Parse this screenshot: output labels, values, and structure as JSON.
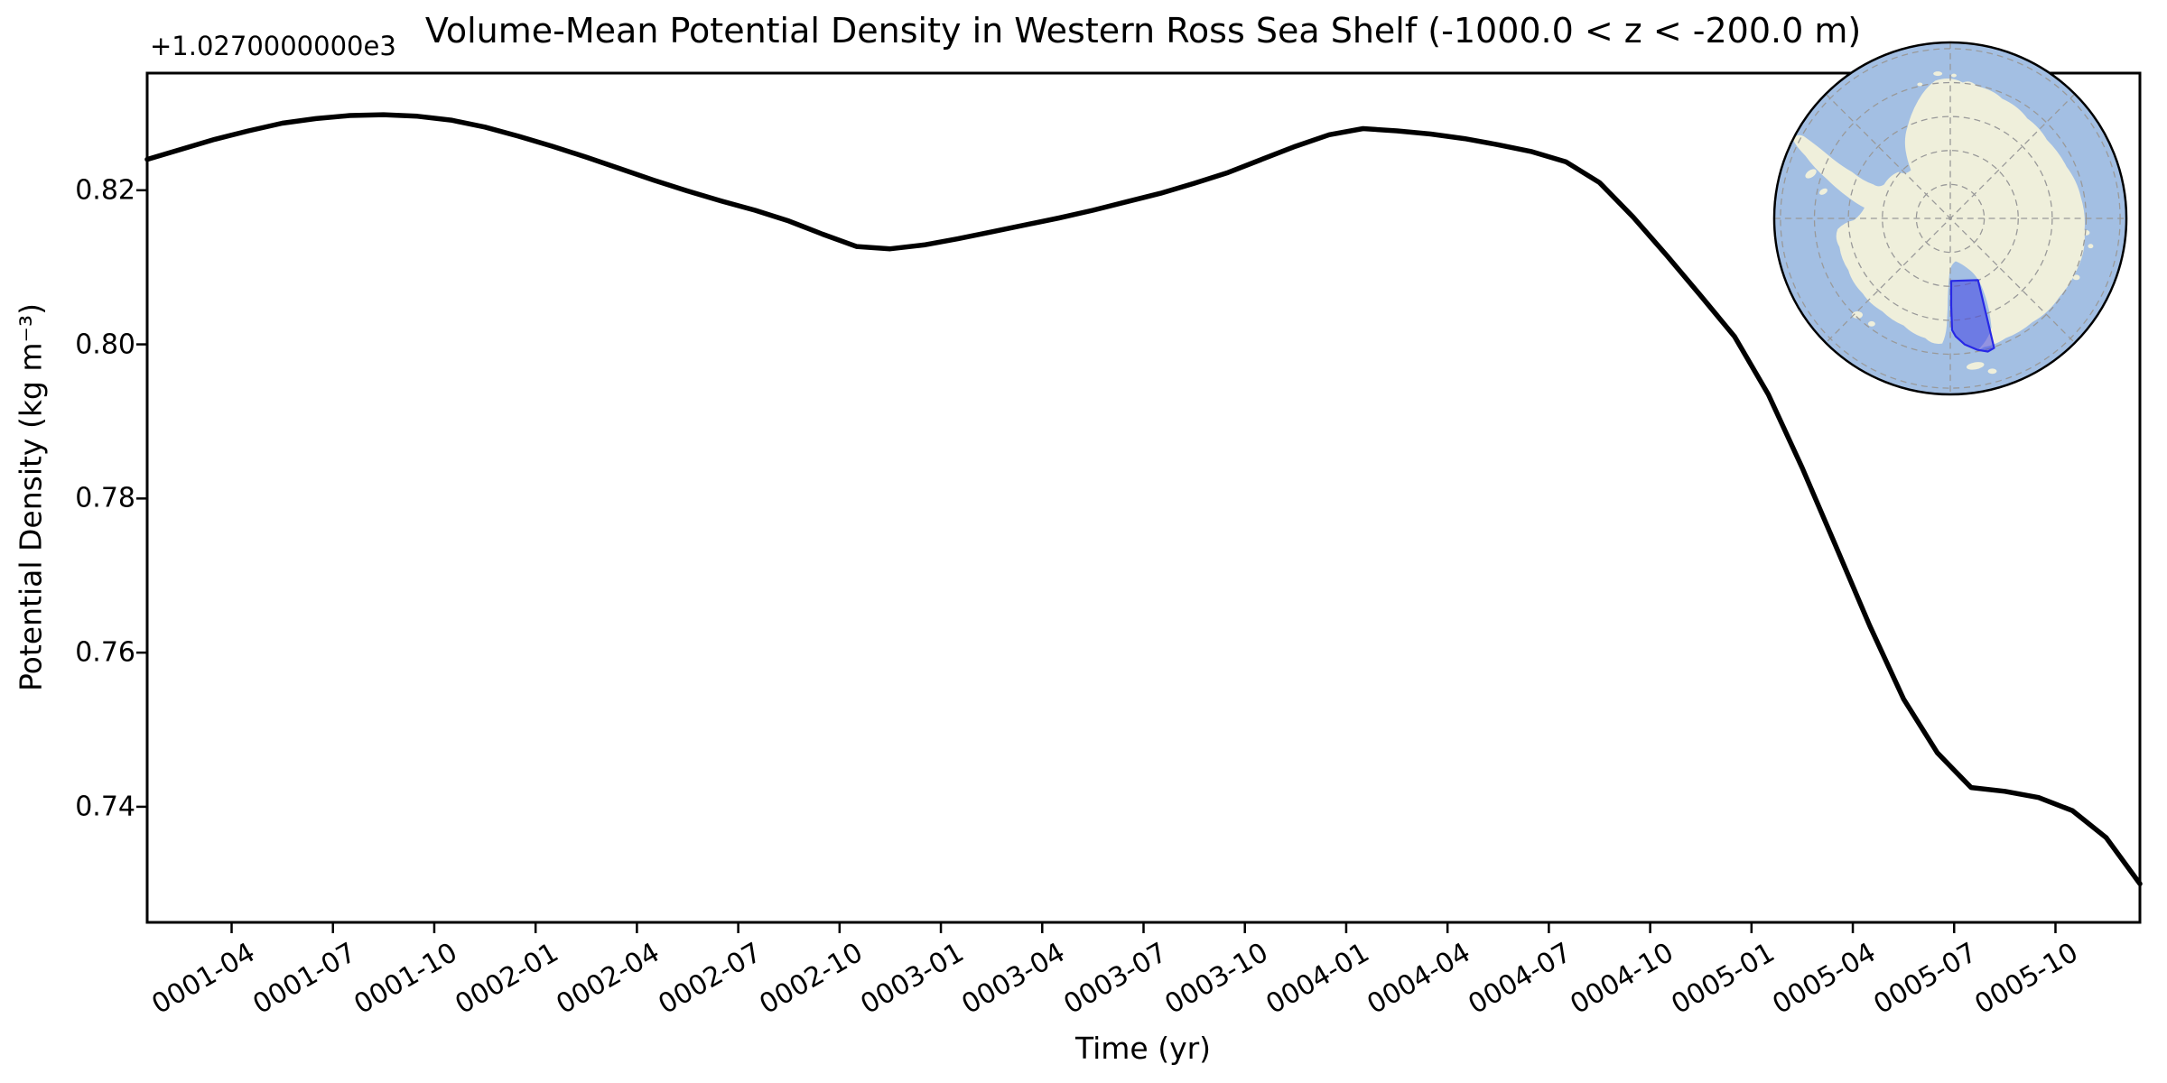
{
  "chart": {
    "title": "Volume-Mean Potential Density in Western Ross Sea Shelf (-1000.0 < z < -200.0 m)",
    "offset_text": "+1.0270000000e3",
    "xlabel": "Time (yr)",
    "ylabel": "Potential Density (kg m⁻³)"
  },
  "chart_data": {
    "type": "line",
    "title": "Volume-Mean Potential Density in Western Ross Sea Shelf (-1000.0 < z < -200.0 m)",
    "xlabel": "Time (yr)",
    "ylabel": "Potential Density (kg m⁻³)",
    "y_axis_offset": "+1.0270000000e3",
    "grid": false,
    "legend": false,
    "line_color": "#000000",
    "ylim": [
      0.725,
      0.8352
    ],
    "x": [
      "0001-01",
      "0001-02",
      "0001-03",
      "0001-04",
      "0001-05",
      "0001-06",
      "0001-07",
      "0001-08",
      "0001-09",
      "0001-10",
      "0001-11",
      "0001-12",
      "0002-01",
      "0002-02",
      "0002-03",
      "0002-04",
      "0002-05",
      "0002-06",
      "0002-07",
      "0002-08",
      "0002-09",
      "0002-10",
      "0002-11",
      "0002-12",
      "0003-01",
      "0003-02",
      "0003-03",
      "0003-04",
      "0003-05",
      "0003-06",
      "0003-07",
      "0003-08",
      "0003-09",
      "0003-10",
      "0003-11",
      "0003-12",
      "0004-01",
      "0004-02",
      "0004-03",
      "0004-04",
      "0004-05",
      "0004-06",
      "0004-07",
      "0004-08",
      "0004-09",
      "0004-10",
      "0004-11",
      "0004-12",
      "0005-01",
      "0005-02",
      "0005-03",
      "0005-04",
      "0005-05",
      "0005-06",
      "0005-07",
      "0005-08",
      "0005-09",
      "0005-10",
      "0005-11",
      "0005-12"
    ],
    "values": [
      0.824,
      0.8253,
      0.8266,
      0.8277,
      0.8287,
      0.8293,
      0.8297,
      0.8298,
      0.8296,
      0.8291,
      0.8282,
      0.827,
      0.8257,
      0.8243,
      0.8228,
      0.8213,
      0.8199,
      0.8186,
      0.8174,
      0.816,
      0.8143,
      0.8127,
      0.8124,
      0.8129,
      0.8137,
      0.8146,
      0.8155,
      0.8164,
      0.8174,
      0.8185,
      0.8196,
      0.8209,
      0.8223,
      0.824,
      0.8257,
      0.8272,
      0.828,
      0.8277,
      0.8273,
      0.8267,
      0.8259,
      0.825,
      0.8237,
      0.821,
      0.8165,
      0.8115,
      0.8063,
      0.801,
      0.7935,
      0.784,
      0.7738,
      0.7635,
      0.754,
      0.747,
      0.7425,
      0.742,
      0.7412,
      0.7395,
      0.736,
      0.73
    ],
    "xtick_labels": [
      "0001-04",
      "0001-07",
      "0001-10",
      "0002-01",
      "0002-04",
      "0002-07",
      "0002-10",
      "0003-01",
      "0003-04",
      "0003-07",
      "0003-10",
      "0004-01",
      "0004-04",
      "0004-07",
      "0004-10",
      "0005-01",
      "0005-04",
      "0005-07",
      "0005-10"
    ],
    "ytick_labels": [
      "0.82",
      "0.80",
      "0.78",
      "0.76",
      "0.74"
    ]
  },
  "inset_map": {
    "ocean_color": "#a3bfe3",
    "land_color": "#efefdb",
    "graticule_color": "#999999",
    "outline_color": "#000000",
    "region_fill": "rgba(55,55,230,0.5)",
    "region_edge": "#2828e6"
  }
}
